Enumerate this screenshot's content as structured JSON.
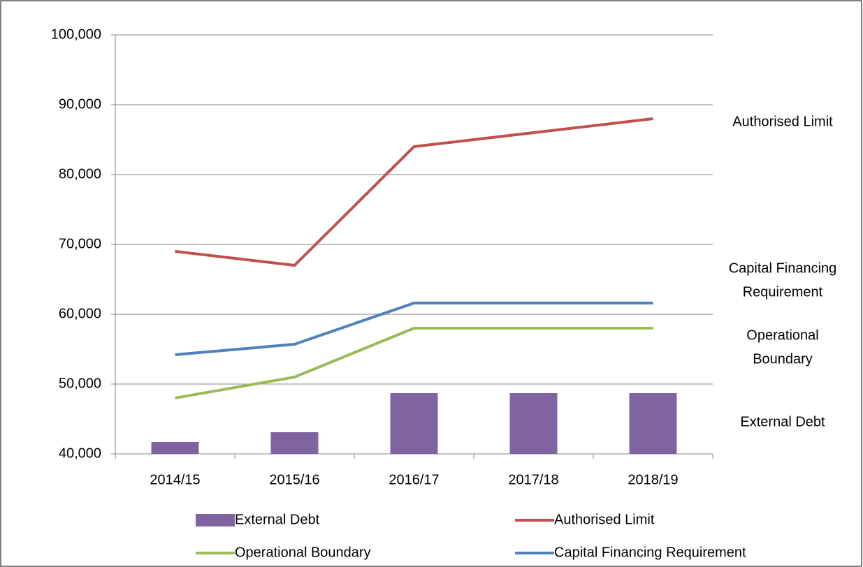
{
  "chart_data": {
    "type": "bar-line",
    "categories": [
      "2014/15",
      "2015/16",
      "2016/17",
      "2017/18",
      "2018/19"
    ],
    "series": [
      {
        "name": "External Debt",
        "type": "bar",
        "color": "#8064a2",
        "values": [
          41700,
          43100,
          48700,
          48700,
          48700
        ]
      },
      {
        "name": "Authorised Limit",
        "type": "line",
        "color": "#c0504d",
        "values": [
          69000,
          67000,
          84000,
          86000,
          88000
        ]
      },
      {
        "name": "Operational Boundary",
        "type": "line",
        "color": "#9bbb59",
        "values": [
          48000,
          51000,
          58000,
          58000,
          58000
        ]
      },
      {
        "name": "Capital Financing Requirement",
        "type": "line",
        "color": "#4f81bd",
        "values": [
          54200,
          55700,
          61600,
          61600,
          61600
        ]
      }
    ],
    "ylim": [
      40000,
      100000
    ],
    "yticks": [
      {
        "value": 40000,
        "label": "40,000"
      },
      {
        "value": 50000,
        "label": "50,000"
      },
      {
        "value": 60000,
        "label": "60,000"
      },
      {
        "value": 70000,
        "label": "70,000"
      },
      {
        "value": 80000,
        "label": "80,000"
      },
      {
        "value": 90000,
        "label": "90,000"
      },
      {
        "value": 100000,
        "label": "100,000"
      }
    ],
    "grid": true,
    "legend": "bottom",
    "annotations": [
      [
        "Authorised Limit"
      ],
      [
        "Capital Financing",
        "Requirement"
      ],
      [
        "Operational",
        "Boundary"
      ],
      [
        "External Debt"
      ]
    ]
  }
}
